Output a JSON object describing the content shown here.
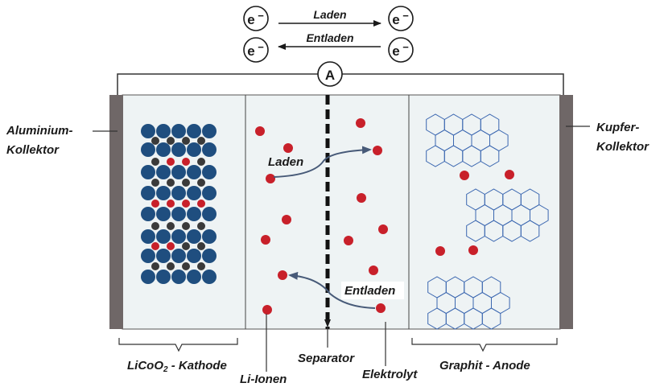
{
  "electron_flow": {
    "electron": "e",
    "charge": "−",
    "charge_label": "Laden",
    "discharge_label": "Entladen"
  },
  "ammeter_label": "A",
  "labels": {
    "aluminium_line1": "Aluminium-",
    "aluminium_line2": "Kollektor",
    "kupfer_line1": "Kupfer-",
    "kupfer_line2": "Kollektor",
    "kathode_formula": "LiCoO",
    "kathode_subscript": "2",
    "kathode_suffix": " - Kathode",
    "anode": "Graphit - Anode",
    "li_ionen": "Li-Ionen",
    "separator": "Separator",
    "elektrolyt": "Elektrolyt",
    "arrow_laden": "Laden",
    "arrow_entladen": "Entladen"
  },
  "colors": {
    "collector": "#6f6767",
    "cell_fill": "#eef3f4",
    "cobalt_blue": "#1f4e7f",
    "oxygen_dark": "#3a3a3a",
    "lithium_red": "#c8202a",
    "graphite_line": "#3b67b0",
    "arrow": "#475a78"
  }
}
